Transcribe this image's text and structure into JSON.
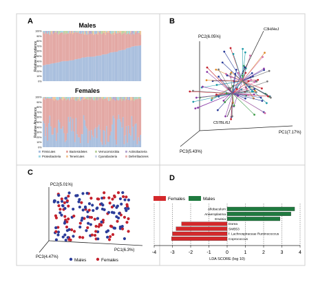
{
  "figure": {
    "panels": {
      "A": {
        "letter": "A",
        "males_title": "Males",
        "females_title": "Females",
        "ylabel": "Relative Abundance",
        "yticks": [
          "100%",
          "90%",
          "80%",
          "70%",
          "60%",
          "50%",
          "40%",
          "30%",
          "20%",
          "10%",
          "0%"
        ],
        "legend": [
          "Firmicutes",
          "Bacteroidetes",
          "Verrucomicrobia",
          "Actinobacteria",
          "Proteobacteria",
          "Tenericutes",
          "Cyanobacteria",
          "Deferribacteres"
        ]
      },
      "B": {
        "letter": "B",
        "pc1": "PC1(7.17%)",
        "pc2": "PC2(6.05%)",
        "pc3": "PC3(5.43%)",
        "label_a": "C3H/HeJ",
        "label_b": "C57BL/6J"
      },
      "C": {
        "letter": "C",
        "pc1": "PC1(6.3%)",
        "pc2": "PC2(5.01%)",
        "pc3": "PC3(4.47%)",
        "legend": [
          "Males",
          "Females"
        ]
      },
      "D": {
        "letter": "D",
        "legend": [
          "Females",
          "Males"
        ],
        "xlabel": "LDA SCORE (log 10)",
        "males_taxa": [
          "Allobaculum",
          "Anaeroplasma",
          "Erwinia"
        ],
        "females_taxa": [
          "Dorea",
          "SMB53",
          "f. Lachnospiraceae Ruminococcus",
          "Coprococcus"
        ]
      }
    },
    "colors": {
      "firmicutes": "#a9bfde",
      "bacteroidetes": "#e3a8a4",
      "green_bar": "#1f7a3f",
      "red_bar": "#d4282b",
      "male_dot": "#2c3d9a",
      "female_dot": "#c4222e"
    }
  },
  "chart_data": [
    {
      "panel": "A-Males",
      "type": "bar",
      "stacked": true,
      "series": [
        {
          "name": "Firmicutes",
          "values_range": [
            0.3,
            0.72
          ]
        },
        {
          "name": "Bacteroidetes",
          "values_range": [
            0.25,
            0.68
          ]
        }
      ],
      "ylim": [
        0,
        1
      ]
    },
    {
      "panel": "A-Females",
      "type": "bar",
      "stacked": true,
      "series": [
        {
          "name": "Firmicutes",
          "values_range": [
            0.05,
            0.65
          ]
        },
        {
          "name": "Bacteroidetes",
          "values_range": [
            0.3,
            0.92
          ]
        }
      ],
      "ylim": [
        0,
        1
      ]
    },
    {
      "panel": "D",
      "type": "bar",
      "orientation": "horizontal",
      "categories": [
        "Allobaculum",
        "Anaeroplasma",
        "Erwinia",
        "Dorea",
        "SMB53",
        "f. Lachnospiraceae Ruminococcus",
        "Coprococcus"
      ],
      "values": [
        3.7,
        3.5,
        2.9,
        -2.5,
        -2.8,
        -3.0,
        -3.05
      ],
      "xlabel": "LDA SCORE (log 10)",
      "xlim": [
        -4,
        4
      ],
      "xticks": [
        "-4",
        "-3",
        "-2",
        "-1",
        "0",
        "1",
        "2",
        "3",
        "4"
      ]
    }
  ]
}
